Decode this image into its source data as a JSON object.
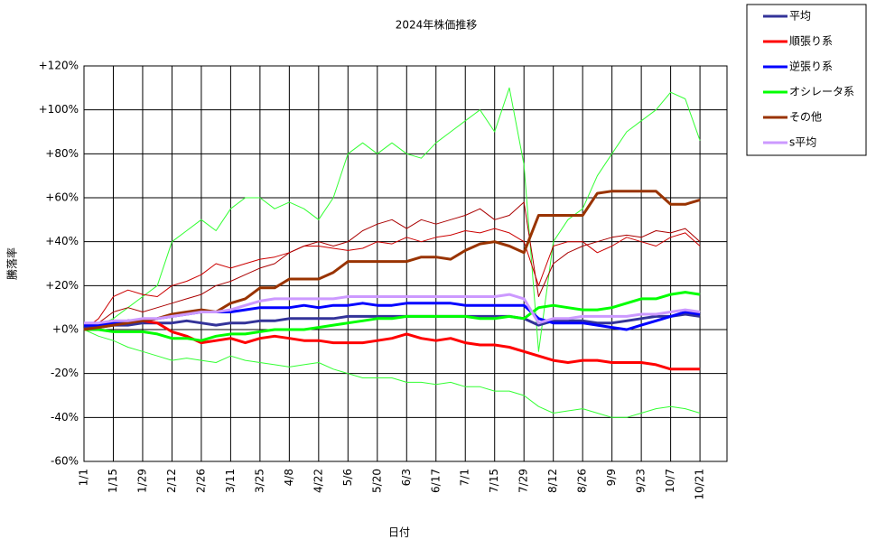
{
  "chart_data": {
    "type": "line",
    "title": "2024年株価推移",
    "x_label": "日付",
    "y_label": "騰落率",
    "categories": [
      "1/1",
      null,
      "1/15",
      null,
      "1/29",
      null,
      "2/12",
      null,
      "2/26",
      null,
      "3/11",
      null,
      "3/25",
      null,
      "4/8",
      null,
      "4/22",
      null,
      "5/6",
      null,
      "5/20",
      null,
      "6/3",
      null,
      "6/17",
      null,
      "7/1",
      null,
      "7/15",
      null,
      "7/29",
      null,
      "8/12",
      null,
      "8/26",
      null,
      "9/9",
      null,
      "9/23",
      null,
      "10/7",
      null,
      "10/21"
    ],
    "ylim": [
      -60,
      120
    ],
    "yticks": [
      {
        "value": -60,
        "label": "-60%"
      },
      {
        "value": -40,
        "label": "-40%"
      },
      {
        "value": -20,
        "label": "-20%"
      },
      {
        "value": 0,
        "label": "+0%"
      },
      {
        "value": 20,
        "label": "+20%"
      },
      {
        "value": 40,
        "label": "+40%"
      },
      {
        "value": 60,
        "label": "+60%"
      },
      {
        "value": 80,
        "label": "+80%"
      },
      {
        "value": 100,
        "label": "+100%"
      },
      {
        "value": 120,
        "label": "+120%"
      }
    ],
    "grid": true,
    "legend": "right",
    "series": [
      {
        "color": "#33ff33",
        "values": [
          0,
          2,
          5,
          10,
          15,
          20,
          40,
          45,
          50,
          45,
          55,
          60,
          60,
          55,
          58,
          55,
          50,
          60,
          80,
          85,
          80,
          85,
          80,
          78,
          85,
          90,
          95,
          100,
          90,
          110,
          75,
          -10,
          40,
          50,
          55,
          70,
          80,
          90,
          95,
          100,
          108,
          105,
          86
        ]
      },
      {
        "color": "#33ff33",
        "values": [
          0,
          -3,
          -5,
          -8,
          -10,
          -12,
          -14,
          -13,
          -14,
          -15,
          -12,
          -14,
          -15,
          -16,
          -17,
          -16,
          -15,
          -18,
          -20,
          -22,
          -22,
          -22,
          -24,
          -24,
          -25,
          -24,
          -26,
          -26,
          -28,
          -28,
          -30,
          -35,
          -38,
          -37,
          -36,
          -38,
          -40,
          -40,
          -38,
          -36,
          -35,
          -36,
          -38
        ]
      },
      {
        "color": "#cc0000",
        "values": [
          0,
          5,
          15,
          18,
          16,
          15,
          20,
          22,
          25,
          30,
          28,
          30,
          32,
          33,
          35,
          38,
          38,
          37,
          36,
          37,
          40,
          39,
          42,
          40,
          42,
          43,
          45,
          44,
          46,
          44,
          40,
          20,
          38,
          40,
          40,
          35,
          38,
          42,
          40,
          38,
          42,
          44,
          38
        ]
      },
      {
        "color": "#aa0000",
        "values": [
          0,
          3,
          8,
          10,
          8,
          10,
          12,
          14,
          16,
          20,
          22,
          25,
          28,
          30,
          35,
          38,
          40,
          38,
          40,
          45,
          48,
          50,
          46,
          50,
          48,
          50,
          52,
          55,
          50,
          52,
          58,
          15,
          30,
          35,
          38,
          40,
          42,
          43,
          42,
          45,
          44,
          46,
          40
        ]
      },
      {
        "name": "平均",
        "color": "#333399",
        "values": [
          1,
          1,
          2,
          2,
          3,
          3,
          3,
          4,
          3,
          2,
          3,
          3,
          4,
          4,
          5,
          5,
          5,
          5,
          6,
          6,
          6,
          6,
          6,
          6,
          6,
          6,
          6,
          6,
          6,
          6,
          5,
          2,
          4,
          4,
          4,
          3,
          3,
          4,
          5,
          6,
          6,
          7,
          6
        ]
      },
      {
        "name": "順張り系",
        "color": "#ff0000",
        "values": [
          0,
          1,
          3,
          4,
          4,
          3,
          -1,
          -3,
          -6,
          -5,
          -4,
          -6,
          -4,
          -3,
          -4,
          -5,
          -5,
          -6,
          -6,
          -6,
          -5,
          -4,
          -2,
          -4,
          -5,
          -4,
          -6,
          -7,
          -7,
          -8,
          -10,
          -12,
          -14,
          -15,
          -14,
          -14,
          -15,
          -15,
          -15,
          -16,
          -18,
          -18,
          -18
        ]
      },
      {
        "name": "逆張り系",
        "color": "#0000ff",
        "values": [
          2,
          2,
          3,
          4,
          4,
          5,
          6,
          7,
          8,
          8,
          8,
          9,
          10,
          10,
          10,
          11,
          10,
          11,
          11,
          12,
          11,
          11,
          12,
          12,
          12,
          12,
          11,
          11,
          11,
          11,
          11,
          5,
          3,
          3,
          3,
          2,
          1,
          0,
          2,
          4,
          6,
          8,
          7
        ]
      },
      {
        "name": "オシレータ系",
        "color": "#00ff00",
        "values": [
          0,
          0,
          -1,
          -1,
          -1,
          -2,
          -4,
          -4,
          -5,
          -3,
          -2,
          -2,
          -1,
          0,
          0,
          0,
          1,
          2,
          3,
          4,
          5,
          5,
          6,
          6,
          6,
          6,
          6,
          5,
          5,
          6,
          5,
          10,
          11,
          10,
          9,
          9,
          10,
          12,
          14,
          14,
          16,
          17,
          16
        ]
      },
      {
        "name": "その他",
        "color": "#993300",
        "values": [
          0,
          1,
          2,
          3,
          4,
          5,
          7,
          8,
          9,
          8,
          12,
          14,
          19,
          19,
          23,
          23,
          23,
          26,
          31,
          31,
          31,
          31,
          31,
          33,
          33,
          32,
          36,
          39,
          40,
          38,
          35,
          52,
          52,
          52,
          52,
          62,
          63,
          63,
          63,
          63,
          57,
          57,
          59
        ]
      },
      {
        "name": "s平均",
        "color": "#cc99ff",
        "values": [
          3,
          3,
          4,
          4,
          5,
          5,
          6,
          7,
          8,
          8,
          9,
          11,
          13,
          14,
          14,
          14,
          14,
          14,
          15,
          15,
          15,
          15,
          15,
          15,
          15,
          15,
          15,
          15,
          15,
          16,
          14,
          3,
          5,
          5,
          6,
          6,
          6,
          6,
          7,
          7,
          8,
          9,
          8
        ]
      }
    ]
  }
}
